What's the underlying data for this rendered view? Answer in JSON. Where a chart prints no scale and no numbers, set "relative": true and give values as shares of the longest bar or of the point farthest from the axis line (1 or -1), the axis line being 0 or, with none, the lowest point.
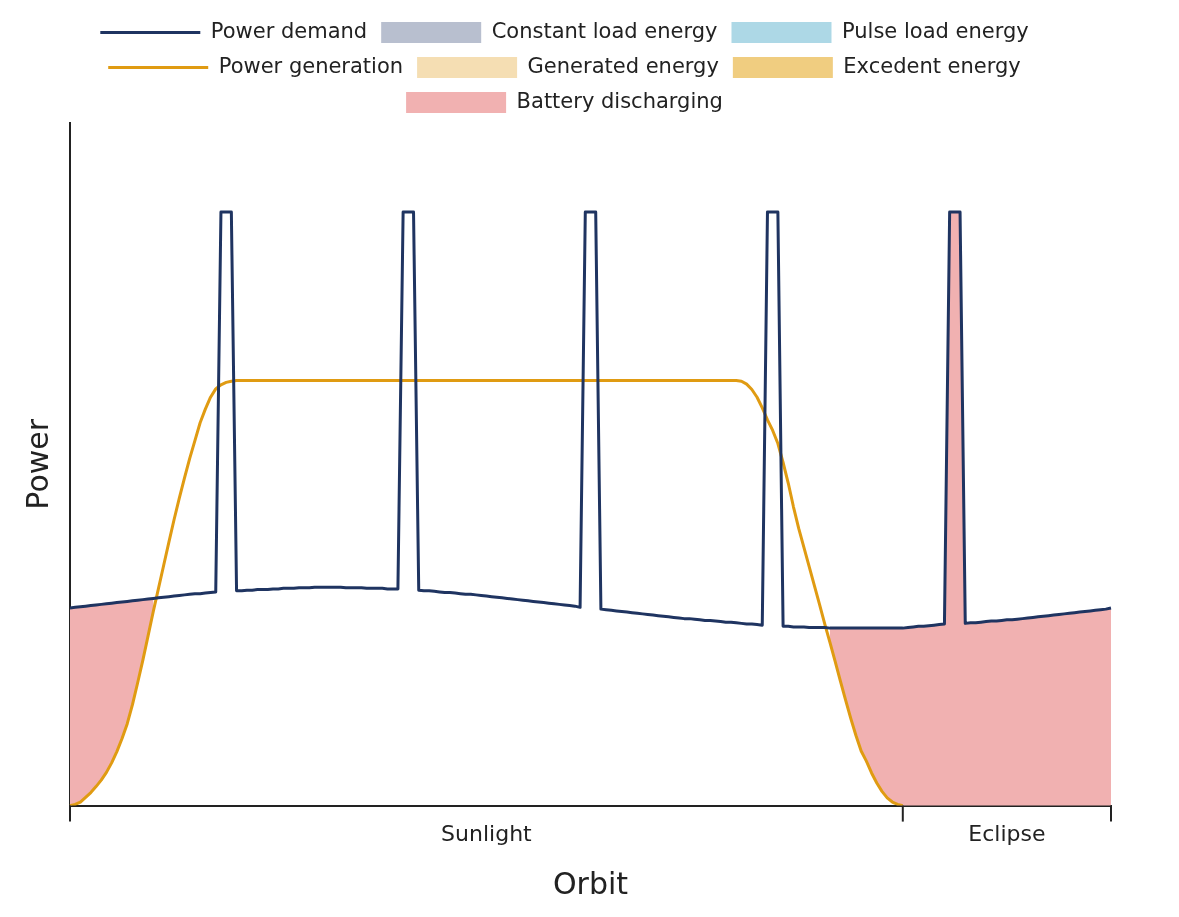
{
  "chart_data": {
    "type": "line",
    "xlabel": "Orbit",
    "ylabel": "Power",
    "relative": true,
    "legend": "top",
    "categories": [
      null,
      null,
      null,
      null,
      null,
      null,
      null,
      null,
      null,
      null,
      null,
      null,
      null,
      null,
      null,
      null,
      null,
      null,
      null,
      null,
      null,
      null,
      null,
      null,
      null,
      null,
      null,
      null,
      null,
      null,
      null,
      null,
      null,
      null,
      null,
      null,
      null,
      null,
      null,
      null,
      null,
      null,
      null,
      null,
      null,
      null,
      null,
      null,
      null,
      null,
      null,
      null,
      null,
      null,
      null,
      null,
      null,
      null,
      null,
      null,
      null,
      null,
      null,
      null,
      null,
      null,
      null,
      null,
      null,
      null,
      null,
      null,
      null,
      null,
      null,
      null,
      null,
      null,
      null,
      null,
      "Sunlight",
      null,
      null,
      null,
      null,
      null,
      null,
      null,
      null,
      null,
      null,
      null,
      null,
      null,
      null,
      null,
      null,
      null,
      null,
      null,
      null,
      null,
      null,
      null,
      null,
      null,
      null,
      null,
      null,
      null,
      null,
      null,
      null,
      null,
      null,
      null,
      null,
      null,
      null,
      null,
      null,
      null,
      null,
      null,
      null,
      null,
      null,
      null,
      null,
      null,
      null,
      null,
      null,
      null,
      null,
      null,
      null,
      null,
      null,
      null,
      null,
      null,
      null,
      null,
      null,
      null,
      null,
      null,
      null,
      null,
      null,
      null,
      null,
      null,
      null,
      null,
      null,
      null,
      null,
      null,
      null,
      null,
      null,
      null,
      null,
      null,
      null,
      null,
      null,
      null,
      null,
      null,
      null,
      null,
      null,
      null,
      null,
      null,
      null,
      null,
      "Eclipse",
      null,
      null,
      null,
      null,
      null,
      null,
      null,
      null,
      null,
      null,
      null,
      null,
      null,
      null,
      null,
      null,
      null,
      null,
      null,
      null
    ],
    "series": [
      {
        "name": "Power demand",
        "color": "#1f3461",
        "values": [
          0.333,
          0.334,
          0.335,
          0.336,
          0.337,
          0.338,
          0.339,
          0.34,
          0.341,
          0.342,
          0.343,
          0.344,
          0.345,
          0.346,
          0.347,
          0.348,
          0.349,
          0.35,
          0.351,
          0.352,
          0.353,
          0.354,
          0.355,
          0.356,
          0.357,
          0.357,
          0.358,
          0.359,
          0.36,
          1,
          1,
          1,
          0.362,
          0.362,
          0.363,
          0.363,
          0.364,
          0.364,
          0.364,
          0.365,
          0.365,
          0.366,
          0.366,
          0.366,
          0.367,
          0.367,
          0.367,
          0.368,
          0.368,
          0.368,
          0.368,
          0.368,
          0.368,
          0.367,
          0.367,
          0.367,
          0.367,
          0.366,
          0.366,
          0.366,
          0.366,
          0.365,
          0.365,
          0.365,
          1,
          1,
          1,
          0.363,
          0.362,
          0.362,
          0.361,
          0.36,
          0.359,
          0.359,
          0.358,
          0.357,
          0.356,
          0.356,
          0.355,
          0.354,
          0.353,
          0.352,
          0.351,
          0.35,
          0.349,
          0.348,
          0.347,
          0.346,
          0.345,
          0.344,
          0.343,
          0.342,
          0.341,
          0.34,
          0.339,
          0.338,
          0.337,
          0.336,
          0.334,
          1,
          1,
          1,
          0.331,
          0.33,
          0.329,
          0.328,
          0.327,
          0.326,
          0.325,
          0.324,
          0.323,
          0.322,
          0.321,
          0.32,
          0.319,
          0.318,
          0.317,
          0.316,
          0.315,
          0.315,
          0.314,
          0.313,
          0.312,
          0.312,
          0.311,
          0.31,
          0.309,
          0.309,
          0.308,
          0.307,
          0.306,
          0.306,
          0.305,
          0.304,
          1,
          1,
          1,
          0.302,
          0.302,
          0.301,
          0.301,
          0.301,
          0.3,
          0.3,
          0.3,
          0.3,
          0.299,
          0.299,
          0.299,
          0.299,
          0.299,
          0.299,
          0.299,
          0.299,
          0.299,
          0.299,
          0.299,
          0.299,
          0.299,
          0.299,
          0.299,
          0.3,
          0.301,
          0.302,
          0.302,
          0.303,
          0.304,
          0.305,
          0.306,
          1,
          1,
          1,
          0.307,
          0.308,
          0.308,
          0.309,
          0.31,
          0.311,
          0.311,
          0.312,
          0.313,
          0.313,
          0.314,
          0.315,
          0.316,
          0.317,
          0.318,
          0.319,
          0.32,
          0.321,
          0.322,
          0.323,
          0.324,
          0.325,
          0.326,
          0.327,
          0.328,
          0.329,
          0.33,
          0.331,
          0.333
        ]
      },
      {
        "name": "Constant load energy",
        "type": "area",
        "color": "#b8bfcf",
        "values": [
          null,
          null,
          null,
          null,
          null,
          null,
          null,
          null,
          null,
          null,
          null,
          null,
          null,
          null,
          null,
          null,
          null,
          null,
          null,
          null,
          null,
          null,
          null,
          null,
          null,
          null,
          null,
          null,
          null,
          null,
          null,
          null,
          null,
          null,
          null,
          null,
          null,
          null,
          null,
          null,
          null,
          null,
          null,
          null,
          null,
          null,
          null,
          null,
          null,
          null,
          null,
          null,
          null,
          null,
          null,
          null,
          null,
          null,
          null,
          null,
          null,
          null,
          null,
          null,
          null,
          null,
          null,
          null,
          null,
          null,
          null,
          null,
          null,
          null,
          null,
          null,
          null,
          null,
          null,
          null,
          null,
          null,
          null,
          null,
          null,
          null,
          null,
          null,
          null,
          null,
          null,
          null,
          null,
          null,
          null,
          null,
          null,
          null,
          null,
          null,
          null,
          null,
          null,
          null,
          null,
          null,
          null,
          null,
          null,
          null,
          null,
          null,
          null,
          null,
          null,
          null,
          null,
          null,
          null,
          null,
          null,
          null,
          null,
          null,
          null,
          null,
          null,
          null,
          null,
          null,
          null,
          null,
          null,
          null,
          null,
          null,
          null,
          null,
          null,
          null,
          null,
          null,
          null,
          null,
          null,
          null,
          null,
          null,
          null,
          null,
          null,
          null,
          null,
          null,
          null,
          null,
          null,
          null,
          null,
          null,
          null,
          null,
          null,
          null,
          null,
          null,
          null,
          null,
          null,
          null,
          null,
          null,
          null,
          null,
          null,
          null,
          null,
          null,
          null,
          null,
          null,
          null,
          null,
          null,
          null,
          null,
          null,
          null,
          null,
          null,
          null,
          null,
          null,
          null,
          null,
          null,
          null,
          null,
          null,
          null,
          null
        ]
      },
      {
        "name": "Pulse load energy",
        "type": "area",
        "color": "#add8e6",
        "values": [
          null,
          null,
          null,
          null,
          null,
          null,
          null,
          null,
          null,
          null,
          null,
          null,
          null,
          null,
          null,
          null,
          null,
          null,
          null,
          null,
          null,
          null,
          null,
          null,
          null,
          null,
          null,
          null,
          null,
          null,
          null,
          null,
          null,
          null,
          null,
          null,
          null,
          null,
          null,
          null,
          null,
          null,
          null,
          null,
          null,
          null,
          null,
          null,
          null,
          null,
          null,
          null,
          null,
          null,
          null,
          null,
          null,
          null,
          null,
          null,
          null,
          null,
          null,
          null,
          null,
          null,
          null,
          null,
          null,
          null,
          null,
          null,
          null,
          null,
          null,
          null,
          null,
          null,
          null,
          null,
          null,
          null,
          null,
          null,
          null,
          null,
          null,
          null,
          null,
          null,
          null,
          null,
          null,
          null,
          null,
          null,
          null,
          null,
          null,
          null,
          null,
          null,
          null,
          null,
          null,
          null,
          null,
          null,
          null,
          null,
          null,
          null,
          null,
          null,
          null,
          null,
          null,
          null,
          null,
          null,
          null,
          null,
          null,
          null,
          null,
          null,
          null,
          null,
          null,
          null,
          null,
          null,
          null,
          null,
          null,
          null,
          null,
          null,
          null,
          null,
          null,
          null,
          null,
          null,
          null,
          null,
          null,
          null,
          null,
          null,
          null,
          null,
          null,
          null,
          null,
          null,
          null,
          null,
          null,
          null,
          null,
          null,
          null,
          null,
          null,
          null,
          null,
          null,
          null,
          null,
          null,
          null,
          null,
          null,
          null,
          null,
          null,
          null,
          null,
          null,
          null,
          null,
          null,
          null,
          null,
          null,
          null,
          null,
          null,
          null,
          null,
          null,
          null,
          null,
          null,
          null,
          null,
          null,
          null,
          null,
          null
        ]
      },
      {
        "name": "Power generation",
        "color": "#e09b12",
        "values": [
          0,
          0.002,
          0.006,
          0.014,
          0.022,
          0.032,
          0.043,
          0.056,
          0.072,
          0.091,
          0.113,
          0.138,
          0.17,
          0.207,
          0.245,
          0.286,
          0.327,
          0.366,
          0.405,
          0.444,
          0.482,
          0.518,
          0.552,
          0.585,
          0.615,
          0.645,
          0.668,
          0.688,
          0.702,
          0.709,
          0.713,
          0.715,
          0.716,
          0.716,
          0.716,
          0.716,
          0.716,
          0.716,
          0.716,
          0.716,
          0.716,
          0.716,
          0.716,
          0.716,
          0.716,
          0.716,
          0.716,
          0.716,
          0.716,
          0.716,
          0.716,
          0.716,
          0.716,
          0.716,
          0.716,
          0.716,
          0.716,
          0.716,
          0.716,
          0.716,
          0.716,
          0.716,
          0.716,
          0.716,
          0.716,
          0.716,
          0.716,
          0.716,
          0.716,
          0.716,
          0.716,
          0.716,
          0.716,
          0.716,
          0.716,
          0.716,
          0.716,
          0.716,
          0.716,
          0.716,
          0.716,
          0.716,
          0.716,
          0.716,
          0.716,
          0.716,
          0.716,
          0.716,
          0.716,
          0.716,
          0.716,
          0.716,
          0.716,
          0.716,
          0.716,
          0.716,
          0.716,
          0.716,
          0.716,
          0.716,
          0.716,
          0.716,
          0.716,
          0.716,
          0.716,
          0.716,
          0.716,
          0.716,
          0.716,
          0.716,
          0.716,
          0.716,
          0.716,
          0.716,
          0.716,
          0.716,
          0.716,
          0.716,
          0.716,
          0.716,
          0.716,
          0.716,
          0.716,
          0.716,
          0.716,
          0.716,
          0.716,
          0.716,
          0.716,
          0.715,
          0.71,
          0.701,
          0.688,
          0.67,
          0.65,
          0.632,
          0.61,
          0.578,
          0.543,
          0.503,
          0.467,
          0.435,
          0.403,
          0.371,
          0.339,
          0.306,
          0.275,
          0.243,
          0.21,
          0.178,
          0.147,
          0.118,
          0.092,
          0.075,
          0.055,
          0.038,
          0.024,
          0.013,
          0.006,
          0.002,
          0,
          null,
          null,
          null,
          null,
          null,
          null,
          null,
          null,
          null,
          null,
          null,
          null,
          null,
          null,
          null,
          null,
          null,
          null,
          null,
          null,
          null,
          null,
          null,
          null,
          null,
          null,
          null,
          null,
          null,
          null,
          null,
          null,
          null,
          null,
          null,
          null,
          null,
          null,
          null,
          null
        ]
      },
      {
        "name": "Generated energy",
        "type": "area",
        "color": "#f5deb3",
        "values": [
          null,
          null,
          null,
          null,
          null,
          null,
          null,
          null,
          null,
          null,
          null,
          null,
          null,
          null,
          null,
          null,
          null,
          null,
          null,
          null,
          null,
          null,
          null,
          null,
          null,
          null,
          null,
          null,
          null,
          null,
          null,
          null,
          null,
          null,
          null,
          null,
          null,
          null,
          null,
          null,
          null,
          null,
          null,
          null,
          null,
          null,
          null,
          null,
          null,
          null,
          null,
          null,
          null,
          null,
          null,
          null,
          null,
          null,
          null,
          null,
          null,
          null,
          null,
          null,
          null,
          null,
          null,
          null,
          null,
          null,
          null,
          null,
          null,
          null,
          null,
          null,
          null,
          null,
          null,
          null,
          null,
          null,
          null,
          null,
          null,
          null,
          null,
          null,
          null,
          null,
          null,
          null,
          null,
          null,
          null,
          null,
          null,
          null,
          null,
          null,
          null,
          null,
          null,
          null,
          null,
          null,
          null,
          null,
          null,
          null,
          null,
          null,
          null,
          null,
          null,
          null,
          null,
          null,
          null,
          null,
          null,
          null,
          null,
          null,
          null,
          null,
          null,
          null,
          null,
          null,
          null,
          null,
          null,
          null,
          null,
          null,
          null,
          null,
          null,
          null,
          null,
          null,
          null,
          null,
          null,
          null,
          null,
          null,
          null,
          null,
          null,
          null,
          null,
          null,
          null,
          null,
          null,
          null,
          null,
          null,
          null,
          null,
          null,
          null,
          null,
          null,
          null,
          null,
          null,
          null,
          null,
          null,
          null,
          null,
          null,
          null,
          null,
          null,
          null,
          null,
          null,
          null,
          null,
          null,
          null,
          null,
          null,
          null,
          null,
          null,
          null,
          null,
          null,
          null,
          null,
          null,
          null,
          null,
          null,
          null,
          null
        ]
      },
      {
        "name": "Excedent energy",
        "type": "area",
        "color": "#f0cd80",
        "values": [
          null,
          null,
          null,
          null,
          null,
          null,
          null,
          null,
          null,
          null,
          null,
          null,
          null,
          null,
          null,
          null,
          null,
          null,
          null,
          null,
          null,
          null,
          null,
          null,
          null,
          null,
          null,
          null,
          null,
          null,
          null,
          null,
          null,
          null,
          null,
          null,
          null,
          null,
          null,
          null,
          null,
          null,
          null,
          null,
          null,
          null,
          null,
          null,
          null,
          null,
          null,
          null,
          null,
          null,
          null,
          null,
          null,
          null,
          null,
          null,
          null,
          null,
          null,
          null,
          null,
          null,
          null,
          null,
          null,
          null,
          null,
          null,
          null,
          null,
          null,
          null,
          null,
          null,
          null,
          null,
          null,
          null,
          null,
          null,
          null,
          null,
          null,
          null,
          null,
          null,
          null,
          null,
          null,
          null,
          null,
          null,
          null,
          null,
          null,
          null,
          null,
          null,
          null,
          null,
          null,
          null,
          null,
          null,
          null,
          null,
          null,
          null,
          null,
          null,
          null,
          null,
          null,
          null,
          null,
          null,
          null,
          null,
          null,
          null,
          null,
          null,
          null,
          null,
          null,
          null,
          null,
          null,
          null,
          null,
          null,
          null,
          null,
          null,
          null,
          null,
          null,
          null,
          null,
          null,
          null,
          null,
          null,
          null,
          null,
          null,
          null,
          null,
          null,
          null,
          null,
          null,
          null,
          null,
          null,
          null,
          null,
          null,
          null,
          null,
          null,
          null,
          null,
          null,
          null,
          null,
          null,
          null,
          null,
          null,
          null,
          null,
          null,
          null,
          null,
          null,
          null,
          null,
          null,
          null,
          null,
          null,
          null,
          null,
          null,
          null,
          null,
          null,
          null,
          null,
          null,
          null,
          null,
          null,
          null,
          null,
          null
        ]
      },
      {
        "name": "Battery discharging",
        "type": "area",
        "color": "#f1b1b1",
        "values": [
          0.333,
          0.334,
          0.335,
          0.336,
          0.337,
          0.338,
          0.339,
          0.34,
          0.341,
          0.342,
          0.343,
          0.344,
          0.345,
          0.346,
          0.347,
          0.348,
          0.349,
          null,
          null,
          null,
          null,
          null,
          null,
          null,
          null,
          null,
          null,
          null,
          null,
          null,
          null,
          null,
          null,
          null,
          null,
          null,
          null,
          null,
          null,
          null,
          null,
          null,
          null,
          null,
          null,
          null,
          null,
          null,
          null,
          null,
          null,
          null,
          null,
          null,
          null,
          null,
          null,
          null,
          null,
          null,
          null,
          null,
          null,
          null,
          null,
          null,
          null,
          null,
          null,
          null,
          null,
          null,
          null,
          null,
          null,
          null,
          null,
          null,
          null,
          null,
          null,
          null,
          null,
          null,
          null,
          null,
          null,
          null,
          null,
          null,
          null,
          null,
          null,
          null,
          null,
          null,
          null,
          null,
          null,
          null,
          null,
          null,
          null,
          null,
          null,
          null,
          null,
          null,
          null,
          null,
          null,
          null,
          null,
          null,
          null,
          null,
          null,
          null,
          null,
          null,
          null,
          null,
          null,
          null,
          null,
          null,
          null,
          null,
          null,
          null,
          null,
          null,
          null,
          null,
          null,
          null,
          null,
          null,
          null,
          null,
          null,
          null,
          null,
          null,
          null,
          null,
          0.299,
          0.299,
          0.299,
          0.299,
          0.299,
          0.299,
          0.299,
          0.299,
          0.299,
          0.299,
          0.299,
          0.299,
          0.299,
          0.299,
          0.299,
          0.3,
          0.301,
          0.302,
          0.302,
          0.303,
          0.304,
          0.305,
          0.306,
          1,
          1,
          1,
          0.307,
          0.308,
          0.308,
          0.309,
          0.31,
          0.311,
          0.311,
          0.312,
          0.313,
          0.313,
          0.314,
          0.315,
          0.316,
          0.317,
          0.318,
          0.319,
          0.32,
          0.321,
          0.322,
          0.323,
          0.324,
          0.325,
          0.326,
          0.327,
          0.328,
          0.329,
          0.33,
          0.331,
          0.333
        ]
      }
    ]
  }
}
